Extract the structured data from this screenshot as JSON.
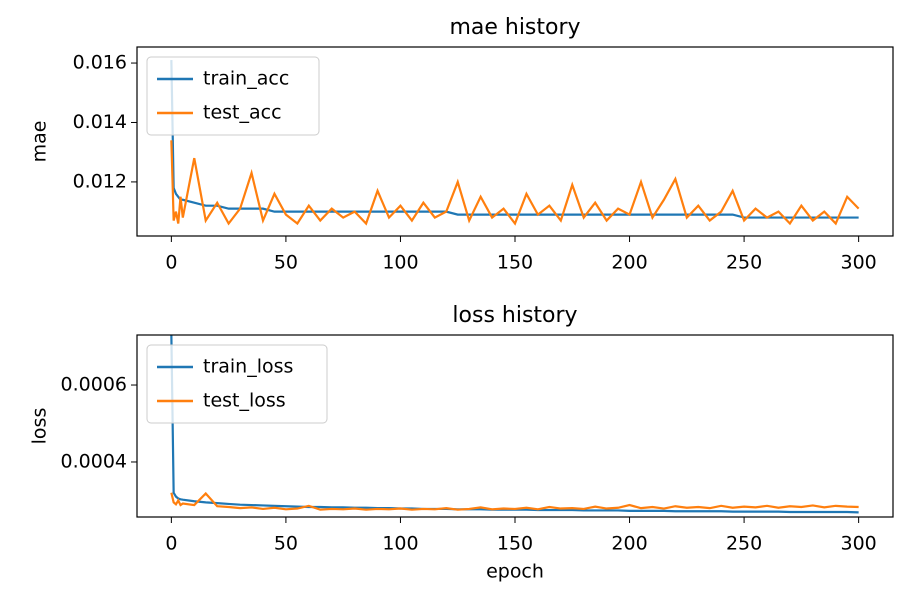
{
  "chart_data": [
    {
      "type": "line",
      "title": "mae history",
      "ylabel": "mae",
      "x": [
        0,
        1,
        2,
        3,
        4,
        5,
        10,
        15,
        20,
        25,
        30,
        35,
        40,
        45,
        50,
        55,
        60,
        65,
        70,
        75,
        80,
        85,
        90,
        95,
        100,
        105,
        110,
        115,
        120,
        125,
        130,
        135,
        140,
        145,
        150,
        155,
        160,
        165,
        170,
        175,
        180,
        185,
        190,
        195,
        200,
        205,
        210,
        215,
        220,
        225,
        230,
        235,
        240,
        245,
        250,
        255,
        260,
        265,
        270,
        275,
        280,
        285,
        290,
        295,
        300
      ],
      "series": [
        {
          "name": "train_acc",
          "color": "#1f77b4",
          "values": [
            0.0161,
            0.0118,
            0.0116,
            0.0115,
            0.0114,
            0.0114,
            0.0113,
            0.0112,
            0.0112,
            0.0111,
            0.0111,
            0.0111,
            0.0111,
            0.011,
            0.011,
            0.011,
            0.011,
            0.011,
            0.011,
            0.011,
            0.011,
            0.011,
            0.011,
            0.011,
            0.011,
            0.011,
            0.011,
            0.011,
            0.011,
            0.0109,
            0.0109,
            0.0109,
            0.0109,
            0.0109,
            0.0109,
            0.0109,
            0.0109,
            0.0109,
            0.0109,
            0.0109,
            0.0109,
            0.0109,
            0.0109,
            0.0109,
            0.0109,
            0.0109,
            0.0109,
            0.0109,
            0.0109,
            0.0109,
            0.0109,
            0.0109,
            0.0109,
            0.0109,
            0.0108,
            0.0108,
            0.0108,
            0.0108,
            0.0108,
            0.0108,
            0.0108,
            0.0108,
            0.0108,
            0.0108,
            0.0108
          ]
        },
        {
          "name": "test_acc",
          "color": "#ff7f0e",
          "values": [
            0.0134,
            0.0107,
            0.011,
            0.0106,
            0.0115,
            0.0108,
            0.0128,
            0.0107,
            0.0113,
            0.0106,
            0.0111,
            0.0123,
            0.0107,
            0.0116,
            0.0109,
            0.0106,
            0.0112,
            0.0107,
            0.0111,
            0.0108,
            0.011,
            0.0106,
            0.0117,
            0.0108,
            0.0112,
            0.0107,
            0.0113,
            0.0108,
            0.011,
            0.012,
            0.0107,
            0.0115,
            0.0108,
            0.0111,
            0.0106,
            0.0116,
            0.0109,
            0.0112,
            0.0107,
            0.0119,
            0.0108,
            0.0113,
            0.0107,
            0.0111,
            0.0109,
            0.012,
            0.0108,
            0.0114,
            0.0121,
            0.0108,
            0.0112,
            0.0107,
            0.011,
            0.0117,
            0.0107,
            0.0111,
            0.0108,
            0.011,
            0.0106,
            0.0112,
            0.0107,
            0.011,
            0.0106,
            0.0115,
            0.0111
          ]
        }
      ],
      "xlim": [
        -15,
        315
      ],
      "ylim": [
        0.01018,
        0.01654
      ],
      "xticks": [
        0,
        50,
        100,
        150,
        200,
        250,
        300
      ],
      "yticks": [
        0.012,
        0.014,
        0.016
      ],
      "legend": "upper left"
    },
    {
      "type": "line",
      "title": "loss history",
      "ylabel": "loss",
      "xlabel": "epoch",
      "x": [
        0,
        1,
        2,
        3,
        4,
        5,
        10,
        15,
        20,
        25,
        30,
        35,
        40,
        45,
        50,
        55,
        60,
        65,
        70,
        75,
        80,
        85,
        90,
        95,
        100,
        105,
        110,
        115,
        120,
        125,
        130,
        135,
        140,
        145,
        150,
        155,
        160,
        165,
        170,
        175,
        180,
        185,
        190,
        195,
        200,
        205,
        210,
        215,
        220,
        225,
        230,
        235,
        240,
        245,
        250,
        255,
        260,
        265,
        270,
        275,
        280,
        285,
        290,
        295,
        300
      ],
      "series": [
        {
          "name": "train_loss",
          "color": "#1f77b4",
          "values": [
            0.00073,
            0.00032,
            0.00031,
            0.000305,
            0.000303,
            0.000302,
            0.000298,
            0.000295,
            0.000293,
            0.000291,
            0.000289,
            0.000288,
            0.000287,
            0.000286,
            0.000285,
            0.000284,
            0.000283,
            0.000283,
            0.000282,
            0.000282,
            0.000281,
            0.000281,
            0.00028,
            0.00028,
            0.000279,
            0.000279,
            0.000278,
            0.000278,
            0.000278,
            0.000277,
            0.000277,
            0.000277,
            0.000276,
            0.000276,
            0.000276,
            0.000276,
            0.000275,
            0.000275,
            0.000275,
            0.000275,
            0.000274,
            0.000274,
            0.000274,
            0.000274,
            0.000273,
            0.000273,
            0.000273,
            0.000273,
            0.000272,
            0.000272,
            0.000272,
            0.000272,
            0.000272,
            0.000271,
            0.000271,
            0.000271,
            0.000271,
            0.000271,
            0.00027,
            0.00027,
            0.00027,
            0.00027,
            0.00027,
            0.00027,
            0.000269
          ]
        },
        {
          "name": "test_loss",
          "color": "#ff7f0e",
          "values": [
            0.00032,
            0.000295,
            0.00029,
            0.0003,
            0.000288,
            0.000292,
            0.000288,
            0.000318,
            0.000285,
            0.000283,
            0.00028,
            0.000282,
            0.000278,
            0.000281,
            0.000277,
            0.000279,
            0.000286,
            0.000276,
            0.000278,
            0.000277,
            0.000279,
            0.000276,
            0.000278,
            0.000277,
            0.000279,
            0.000276,
            0.000278,
            0.000277,
            0.00028,
            0.000276,
            0.000278,
            0.000282,
            0.000277,
            0.000279,
            0.000278,
            0.000281,
            0.000277,
            0.000283,
            0.000279,
            0.00028,
            0.000278,
            0.000284,
            0.000279,
            0.000281,
            0.000288,
            0.00028,
            0.000283,
            0.000279,
            0.000285,
            0.000281,
            0.000283,
            0.00028,
            0.000286,
            0.000281,
            0.000284,
            0.000282,
            0.000286,
            0.000281,
            0.000285,
            0.000283,
            0.000287,
            0.000282,
            0.000286,
            0.000284,
            0.000283
          ]
        }
      ],
      "xlim": [
        -15,
        315
      ],
      "ylim": [
        0.000257,
        0.00073
      ],
      "xticks": [
        0,
        50,
        100,
        150,
        200,
        250,
        300
      ],
      "yticks": [
        0.0004,
        0.0006
      ],
      "legend": "upper left"
    }
  ]
}
